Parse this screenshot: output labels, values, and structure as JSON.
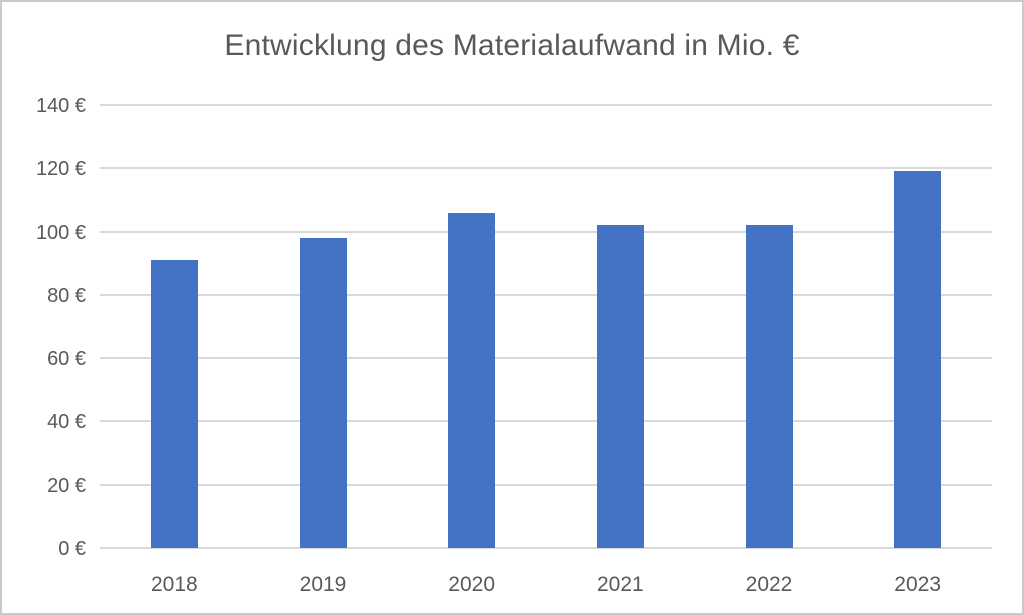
{
  "chart_data": {
    "type": "bar",
    "title": "Entwicklung des Materialaufwand in Mio. €",
    "categories": [
      "2018",
      "2019",
      "2020",
      "2021",
      "2022",
      "2023"
    ],
    "values": [
      91,
      98,
      106,
      102,
      102,
      119
    ],
    "series": [
      {
        "name": "Materialaufwand",
        "values": [
          91,
          98,
          106,
          102,
          102,
          119
        ]
      }
    ],
    "xlabel": "",
    "ylabel": "",
    "ylim": [
      0,
      140
    ],
    "y_ticks": [
      0,
      20,
      40,
      60,
      80,
      100,
      120,
      140
    ],
    "y_tick_labels": [
      "0 €",
      "20 €",
      "40 €",
      "60 €",
      "80 €",
      "100 €",
      "120 €",
      "140 €"
    ],
    "grid": "horizontal",
    "legend": "none",
    "colors": {
      "bar": "#4472C4",
      "gridline": "#D9D9D9",
      "axis_text": "#595959",
      "title_text": "#595959",
      "background": "#FFFFFF",
      "border": "#C9C9C9"
    }
  }
}
